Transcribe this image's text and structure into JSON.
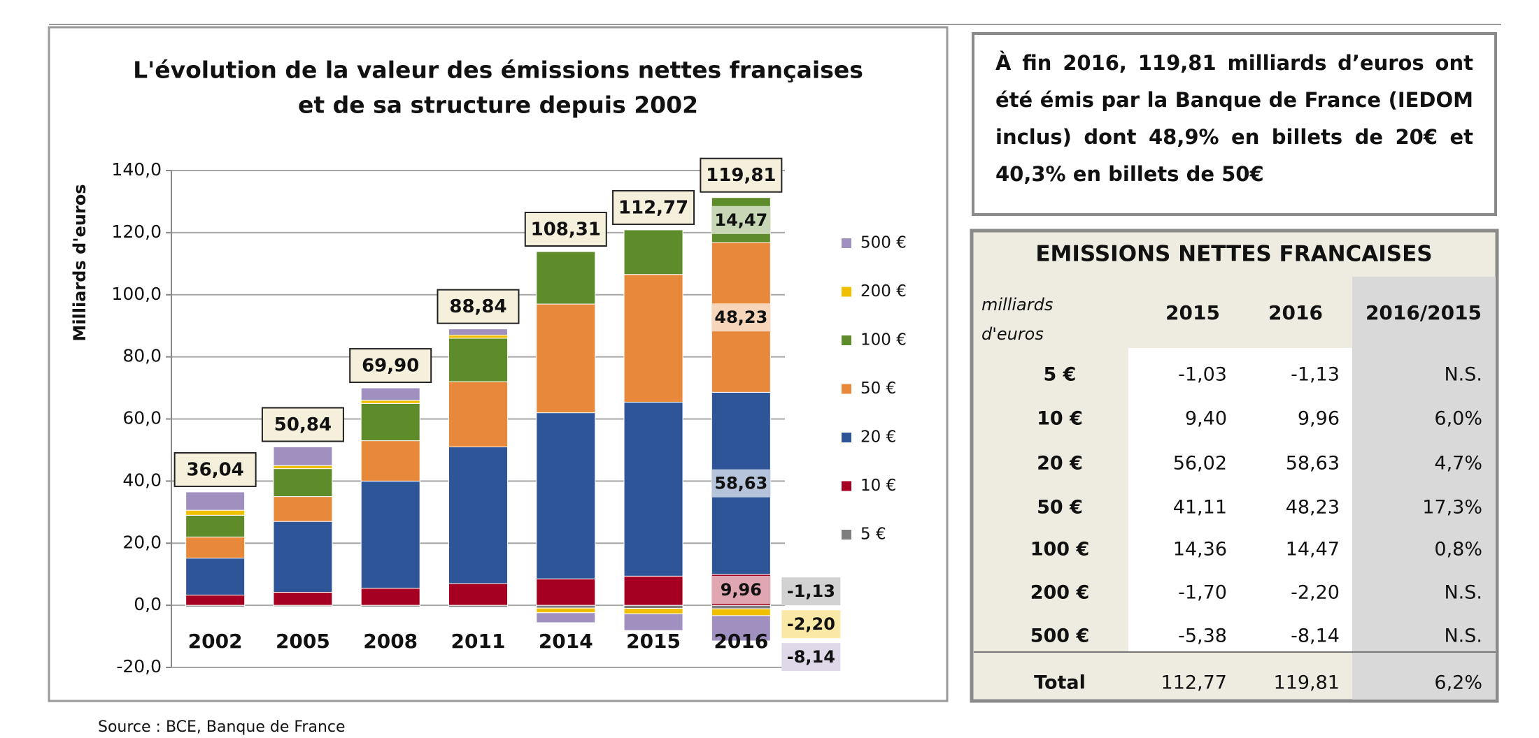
{
  "chart_data": {
    "type": "bar",
    "stacked": true,
    "title": [
      "L'évolution de la valeur des émissions nettes françaises",
      "et de sa structure depuis 2002"
    ],
    "ylabel": "Milliards d'euros",
    "categories": [
      "2002",
      "2005",
      "2008",
      "2011",
      "2014",
      "2015",
      "2016"
    ],
    "series": [
      {
        "name": "5 €",
        "color": "#7f7f7f",
        "values": [
          -0.5,
          -0.4,
          -0.5,
          -0.6,
          -0.9,
          -1.03,
          -1.13
        ],
        "value_labels": [
          null,
          null,
          null,
          null,
          null,
          null,
          "-1,13"
        ]
      },
      {
        "name": "10 €",
        "color": "#a50021",
        "values": [
          3.3,
          4.2,
          5.5,
          7,
          8.5,
          9.4,
          9.96
        ],
        "value_labels": [
          null,
          null,
          null,
          null,
          null,
          null,
          "9,96"
        ]
      },
      {
        "name": "20 €",
        "color": "#2e5597",
        "values": [
          11.9,
          22.8,
          34.5,
          44,
          53.5,
          56.02,
          58.63
        ],
        "value_labels": [
          null,
          null,
          null,
          null,
          null,
          null,
          "58,63"
        ]
      },
      {
        "name": "50 €",
        "color": "#e8883a",
        "values": [
          6.8,
          8,
          13,
          21,
          35,
          41.11,
          48.23
        ],
        "value_labels": [
          null,
          null,
          null,
          null,
          null,
          null,
          "48,23"
        ]
      },
      {
        "name": "100 €",
        "color": "#5f8c2a",
        "values": [
          7,
          9,
          12,
          14,
          16.9,
          14.36,
          14.47
        ],
        "value_labels": [
          null,
          null,
          null,
          null,
          null,
          null,
          "14,47"
        ]
      },
      {
        "name": "200 €",
        "color": "#f0c000",
        "values": [
          1.6,
          1,
          1,
          1,
          -1.5,
          -1.7,
          -2.2
        ],
        "value_labels": [
          null,
          null,
          null,
          null,
          null,
          null,
          "-2,20"
        ]
      },
      {
        "name": "500 €",
        "color": "#a090c0",
        "values": [
          5.9,
          6,
          4,
          2,
          -3.2,
          -5.38,
          -8.14
        ],
        "value_labels": [
          null,
          null,
          null,
          null,
          null,
          null,
          "-8,14"
        ]
      }
    ],
    "totals": {
      "values": [
        36.04,
        50.84,
        69.9,
        88.84,
        108.31,
        112.77,
        119.81
      ],
      "value_labels": [
        "36,04",
        "50,84",
        "69,90",
        "88,84",
        "108,31",
        "112,77",
        "119,81"
      ]
    },
    "ylim": [
      -20,
      140
    ],
    "yticks": [
      {
        "value": -20,
        "label": "-20,0"
      },
      {
        "value": 0,
        "label": "0,0"
      },
      {
        "value": 20,
        "label": "20,0"
      },
      {
        "value": 40,
        "label": "40,0"
      },
      {
        "value": 60,
        "label": "60,0"
      },
      {
        "value": 80,
        "label": "80,0"
      },
      {
        "value": 100,
        "label": "100,0"
      },
      {
        "value": 120,
        "label": "120,0"
      },
      {
        "value": 140,
        "label": "140,0"
      }
    ],
    "grid": true,
    "legend": "right"
  },
  "info_box": {
    "text": "À fin 2016, 119,81 milliards d’euros ont été émis par la Banque de France (IEDOM inclus) dont 48,9% en billets de 20€ et 40,3% en billets de 50€"
  },
  "table": {
    "title": "EMISSIONS NETTES FRANCAISES",
    "header": [
      [
        "milliards",
        "d'euros"
      ],
      "2015",
      "2016",
      "2016/2015"
    ],
    "rows": [
      [
        "5 €",
        "-1,03",
        "-1,13",
        "N.S."
      ],
      [
        "10 €",
        "9,40",
        "9,96",
        "6,0%"
      ],
      [
        "20 €",
        "56,02",
        "58,63",
        "4,7%"
      ],
      [
        "50 €",
        "41,11",
        "48,23",
        "17,3%"
      ],
      [
        "100 €",
        "14,36",
        "14,47",
        "0,8%"
      ],
      [
        "200 €",
        "-1,70",
        "-2,20",
        "N.S."
      ],
      [
        "500 €",
        "-5,38",
        "-8,14",
        "N.S."
      ]
    ],
    "total": [
      "Total",
      "112,77",
      "119,81",
      "6,2%"
    ]
  },
  "source": "Source : BCE, Banque de France"
}
